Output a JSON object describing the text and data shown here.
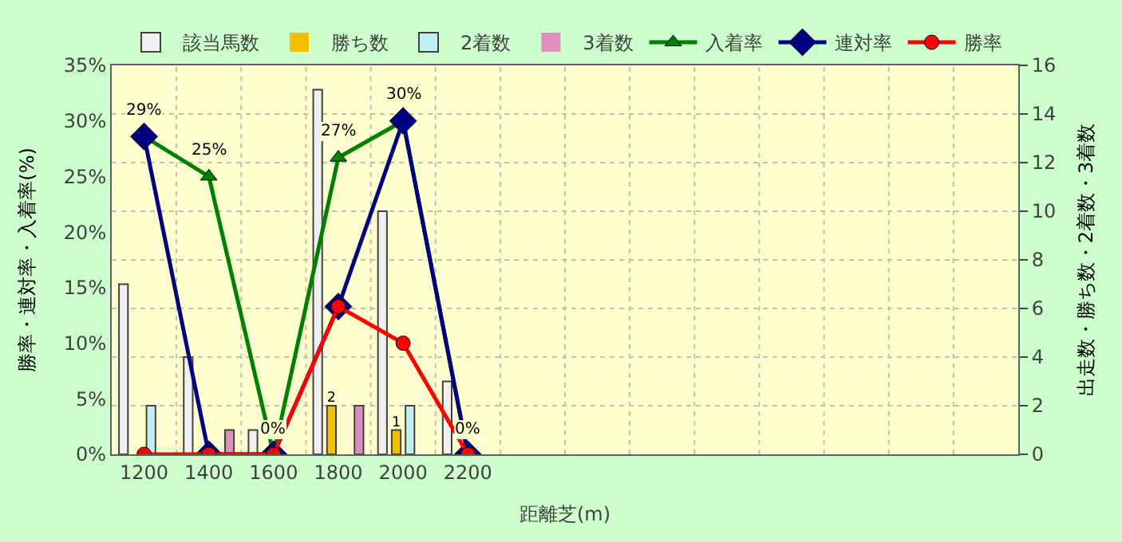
{
  "chart_data": {
    "type": "bar",
    "categories": [
      "1200",
      "1400",
      "1600",
      "1800",
      "2000",
      "2200",
      null,
      null,
      null,
      null,
      null,
      null,
      null,
      null
    ],
    "series": [
      {
        "name": "該当馬数",
        "axis": "y2",
        "color": "#f0f0f0",
        "values": [
          7,
          4,
          1,
          15,
          10,
          3,
          null,
          null,
          null,
          null,
          null,
          null,
          null,
          null
        ]
      },
      {
        "name": "勝ち数",
        "axis": "y2",
        "color": "#f0c000",
        "values": [
          0,
          0,
          0,
          2,
          1,
          0,
          null,
          null,
          null,
          null,
          null,
          null,
          null,
          null
        ],
        "value_labels": [
          null,
          null,
          null,
          "2",
          "1",
          null,
          null,
          null,
          null,
          null,
          null,
          null,
          null,
          null
        ]
      },
      {
        "name": "2着数",
        "axis": "y2",
        "color": "#c0f0f0",
        "values": [
          2,
          0,
          0,
          0,
          2,
          0,
          null,
          null,
          null,
          null,
          null,
          null,
          null,
          null
        ]
      },
      {
        "name": "3着数",
        "axis": "y2",
        "color": "#e090c0",
        "values": [
          0,
          1,
          0,
          2,
          0,
          0,
          null,
          null,
          null,
          null,
          null,
          null,
          null,
          null
        ]
      },
      {
        "name": "入着率",
        "type": "line",
        "marker": "triangle",
        "color": "#008000",
        "values": [
          28.6,
          25,
          0,
          26.7,
          30,
          0,
          null,
          null,
          null,
          null,
          null,
          null,
          null,
          null
        ],
        "value_labels": [
          "29%",
          "25%",
          "0%",
          "27%",
          "30%",
          "0%",
          null,
          null,
          null,
          null,
          null,
          null,
          null,
          null
        ]
      },
      {
        "name": "連対率",
        "type": "line",
        "marker": "diamond",
        "color": "#000080",
        "values": [
          28.6,
          0,
          0,
          13.3,
          30,
          0,
          null,
          null,
          null,
          null,
          null,
          null,
          null,
          null
        ]
      },
      {
        "name": "勝率",
        "type": "line",
        "marker": "circle",
        "color": "#ff0000",
        "values": [
          0,
          0,
          0,
          13.3,
          10,
          0,
          null,
          null,
          null,
          null,
          null,
          null,
          null,
          null
        ]
      }
    ],
    "xlabel": "距離芝(m)",
    "ylabel": "勝率・連対率・入着率(%)",
    "y2label": "出走数・勝ち数・2着数・3着数",
    "ylim": [
      0,
      35
    ],
    "yticks": [
      {
        "value": 0,
        "label": "0%"
      },
      {
        "value": 5,
        "label": "5%"
      },
      {
        "value": 10,
        "label": "10%"
      },
      {
        "value": 15,
        "label": "15%"
      },
      {
        "value": 20,
        "label": "20%"
      },
      {
        "value": 25,
        "label": "25%"
      },
      {
        "value": 30,
        "label": "30%"
      },
      {
        "value": 35,
        "label": "35%"
      }
    ],
    "y2lim": [
      0,
      16
    ],
    "y2ticks": [
      0,
      2,
      4,
      6,
      8,
      10,
      12,
      14,
      16
    ],
    "grid": true,
    "legend": "top",
    "line_style": "solid"
  }
}
